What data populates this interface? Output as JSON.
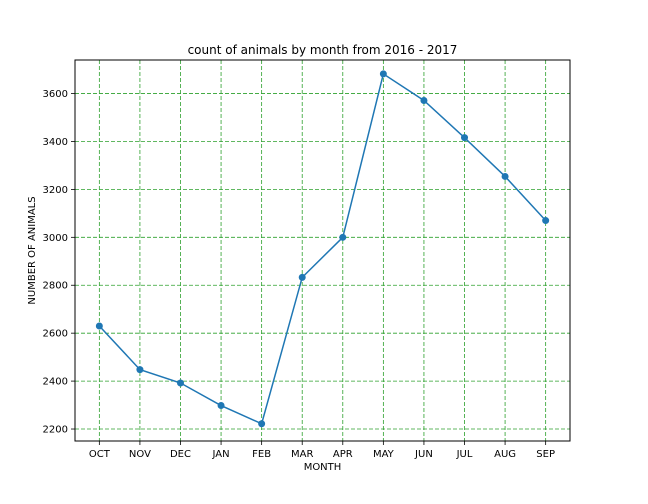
{
  "chart_data": {
    "type": "line",
    "title": "count of animals by month from  2016 - 2017",
    "xlabel": "MONTH",
    "ylabel": "NUMBER OF ANIMALS",
    "categories": [
      "OCT",
      "NOV",
      "DEC",
      "JAN",
      "FEB",
      "MAR",
      "APR",
      "MAY",
      "JUN",
      "JUL",
      "AUG",
      "SEP"
    ],
    "values": [
      2630,
      2448,
      2392,
      2298,
      2222,
      2833,
      3000,
      3682,
      3571,
      3416,
      3254,
      3070
    ],
    "ylim": [
      2150,
      3740
    ],
    "yticks": [
      2200,
      2400,
      2600,
      2800,
      3000,
      3200,
      3400,
      3600
    ],
    "grid": true,
    "colors": {
      "line": "#1f77b4",
      "marker": "#1f77b4",
      "grid": "#2ca02c"
    }
  }
}
